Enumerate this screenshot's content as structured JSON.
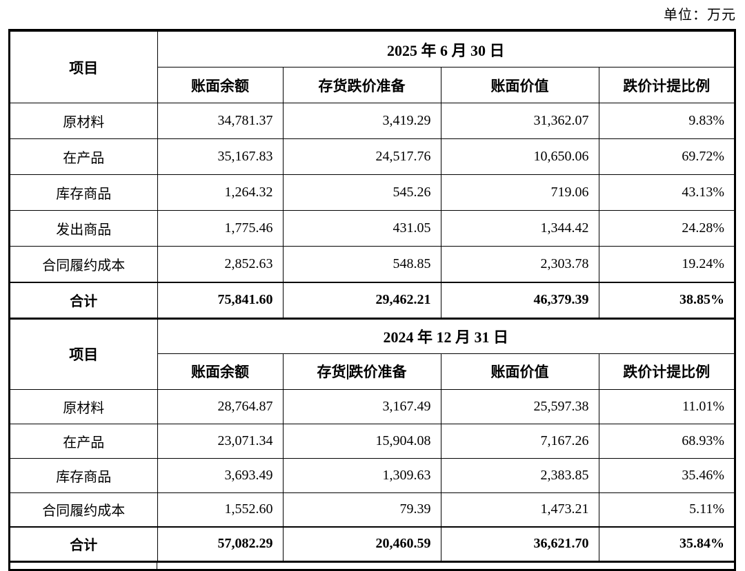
{
  "page": {
    "unit_label": "单位：万元"
  },
  "tables": [
    {
      "item_col_header": "项目",
      "date_header": "2025 年 6 月 30 日",
      "columns": [
        "账面余额",
        "存货跌价准备",
        "账面价值",
        "跌价计提比例"
      ],
      "rows": [
        {
          "item": "原材料",
          "values": [
            "34,781.37",
            "3,419.29",
            "31,362.07",
            "9.83%"
          ],
          "bold": false
        },
        {
          "item": "在产品",
          "values": [
            "35,167.83",
            "24,517.76",
            "10,650.06",
            "69.72%"
          ],
          "bold": false
        },
        {
          "item": "库存商品",
          "values": [
            "1,264.32",
            "545.26",
            "719.06",
            "43.13%"
          ],
          "bold": false
        },
        {
          "item": "发出商品",
          "values": [
            "1,775.46",
            "431.05",
            "1,344.42",
            "24.28%"
          ],
          "bold": false
        },
        {
          "item": "合同履约成本",
          "values": [
            "2,852.63",
            "548.85",
            "2,303.78",
            "19.24%"
          ],
          "bold": false
        },
        {
          "item": "合计",
          "values": [
            "75,841.60",
            "29,462.21",
            "46,379.39",
            "38.85%"
          ],
          "bold": true
        }
      ]
    },
    {
      "item_col_header": "项目",
      "date_header": "2024 年 12 月 31 日",
      "columns": [
        "账面余额",
        "存货跌价准备",
        "账面价值",
        "跌价计提比例"
      ],
      "caret": {
        "col": 1,
        "before": "存货",
        "after": "跌价准备"
      },
      "rows": [
        {
          "item": "原材料",
          "values": [
            "28,764.87",
            "3,167.49",
            "25,597.38",
            "11.01%"
          ],
          "bold": false
        },
        {
          "item": "在产品",
          "values": [
            "23,071.34",
            "15,904.08",
            "7,167.26",
            "68.93%"
          ],
          "bold": false
        },
        {
          "item": "库存商品",
          "values": [
            "3,693.49",
            "1,309.63",
            "2,383.85",
            "35.46%"
          ],
          "bold": false
        },
        {
          "item": "合同履约成本",
          "values": [
            "1,552.60",
            "79.39",
            "1,473.21",
            "5.11%"
          ],
          "bold": false
        },
        {
          "item": "合计",
          "values": [
            "57,082.29",
            "20,460.59",
            "36,621.70",
            "35.84%"
          ],
          "bold": true
        }
      ]
    }
  ]
}
